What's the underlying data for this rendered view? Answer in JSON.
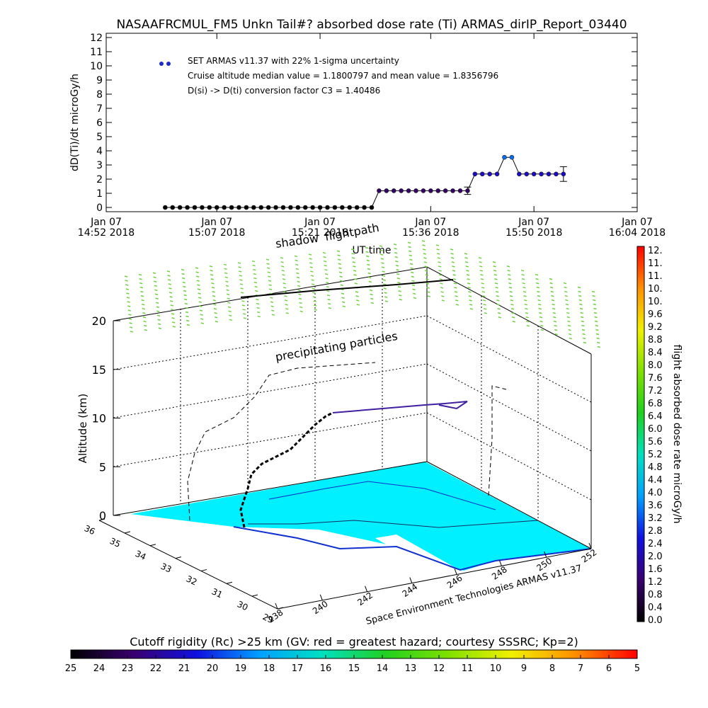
{
  "chart_data": [
    {
      "type": "line",
      "title": "NASAAFRCMUL_FM5 Unkn Tail#? absorbed dose rate (Ti) ARMAS_dirIP_Report_03440",
      "ylabel": "dD(Ti)/dt microGy/h",
      "xlabel": "UT time",
      "annotations": [
        "Cruise altitude median value = 1.1800797 and mean value = 1.8356796",
        "D(si) -> D(ti) conversion factor C3 = 1.40486"
      ],
      "xlim": [
        "14:52",
        "16:04"
      ],
      "xticks": [
        {
          "value": "14:52",
          "label": [
            "Jan 07",
            "14:52 2018"
          ]
        },
        {
          "value": "15:07",
          "label": [
            "Jan 07",
            "15:07 2018"
          ]
        },
        {
          "value": "15:21",
          "label": [
            "Jan 07",
            "15:21 2018"
          ]
        },
        {
          "value": "15:36",
          "label": [
            "Jan 07",
            "15:36 2018"
          ]
        },
        {
          "value": "15:50",
          "label": [
            "Jan 07",
            "15:50 2018"
          ]
        },
        {
          "value": "16:04",
          "label": [
            "Jan 07",
            "16:04 2018"
          ]
        }
      ],
      "ylim": [
        -0.3,
        12.3
      ],
      "yticks": [
        0,
        1,
        2,
        3,
        4,
        5,
        6,
        7,
        8,
        9,
        10,
        11,
        12
      ],
      "x": [
        "15:00",
        "15:01",
        "15:02",
        "15:03",
        "15:04",
        "15:05",
        "15:06",
        "15:07",
        "15:08",
        "15:09",
        "15:10",
        "15:11",
        "15:12",
        "15:13",
        "15:14",
        "15:15",
        "15:16",
        "15:17",
        "15:18",
        "15:19",
        "15:20",
        "15:21",
        "15:22",
        "15:23",
        "15:24",
        "15:25",
        "15:26",
        "15:27",
        "15:28",
        "15:29",
        "15:30",
        "15:31",
        "15:32",
        "15:33",
        "15:34",
        "15:35",
        "15:36",
        "15:37",
        "15:38",
        "15:39",
        "15:40",
        "15:41",
        "15:42",
        "15:43",
        "15:44",
        "15:45",
        "15:46",
        "15:47",
        "15:48",
        "15:49",
        "15:50",
        "15:51",
        "15:52",
        "15:53",
        "15:54"
      ],
      "series": [
        {
          "name": "SET ARMAS v11.37 with 22% 1-sigma uncertainty",
          "color": "#1a2ad0",
          "values": [
            0,
            0,
            0,
            0,
            0,
            0,
            0,
            0,
            0,
            0,
            0,
            0,
            0,
            0,
            0,
            0,
            0,
            0,
            0,
            0,
            0,
            0,
            0,
            0,
            0,
            0,
            0,
            0,
            0,
            1.18,
            1.18,
            1.18,
            1.18,
            1.18,
            1.18,
            1.18,
            1.18,
            1.18,
            1.18,
            1.18,
            1.18,
            1.18,
            2.36,
            2.36,
            2.36,
            2.36,
            3.54,
            3.54,
            2.36,
            2.36,
            2.36,
            2.36,
            2.36,
            2.36,
            2.36
          ],
          "errors": [
            null,
            null,
            null,
            null,
            null,
            null,
            null,
            null,
            null,
            null,
            null,
            null,
            null,
            null,
            null,
            null,
            null,
            null,
            null,
            null,
            null,
            null,
            null,
            null,
            null,
            null,
            null,
            null,
            null,
            null,
            null,
            null,
            null,
            null,
            null,
            null,
            null,
            null,
            null,
            null,
            null,
            0.26,
            null,
            null,
            null,
            null,
            null,
            null,
            null,
            null,
            null,
            null,
            null,
            null,
            0.52
          ]
        }
      ]
    },
    {
      "type": "scatter3d",
      "zlabel": "Altitude (km)",
      "zlim": [
        0,
        20
      ],
      "zticks": [
        0,
        5,
        10,
        15,
        20
      ],
      "ylim": [
        36,
        29
      ],
      "yticks": [
        36,
        35,
        34,
        33,
        32,
        31,
        30,
        29
      ],
      "xlim": [
        238,
        252
      ],
      "xticks": [
        238,
        240,
        242,
        244,
        246,
        248,
        250,
        252
      ],
      "annotations": [
        "shadow",
        "flightpath",
        "precipitating particles"
      ],
      "credit": "Space Environment Technologies ARMAS v11.37"
    },
    {
      "type": "colorbar",
      "orientation": "vertical",
      "label": "flight absorbed dose rate microGy/h",
      "lim": [
        0,
        12
      ],
      "labels": [
        "0.0",
        "0.4",
        "0.8",
        "1.2",
        "1.6",
        "2.0",
        "2.4",
        "2.8",
        "3.2",
        "3.6",
        "4.0",
        "4.4",
        "4.8",
        "5.2",
        "5.6",
        "6.0",
        "6.4",
        "6.8",
        "7.2",
        "7.6",
        "8.0",
        "8.4",
        "8.8",
        "9.2",
        "9.6",
        "10.",
        "10.",
        "11.",
        "11.",
        "12."
      ],
      "colors": [
        "#000000",
        "#3a0070",
        "#1010e0",
        "#00a0ff",
        "#00e0c0",
        "#20d020",
        "#80e000",
        "#f0f000",
        "#ff9000",
        "#ff0000"
      ]
    },
    {
      "type": "colorbar",
      "orientation": "horizontal",
      "label": "Cutoff rigidity (Rc) >25 km (GV: red = greatest hazard; courtesy SSSRC; Kp=2)",
      "lim": [
        25,
        5
      ],
      "ticks": [
        25,
        24,
        23,
        22,
        21,
        20,
        19,
        18,
        17,
        16,
        15,
        14,
        13,
        12,
        11,
        10,
        9,
        8,
        7,
        6,
        5
      ],
      "colors": [
        "#000000",
        "#3a0070",
        "#1010e0",
        "#00a0ff",
        "#00e0c0",
        "#20d020",
        "#80e000",
        "#f0f000",
        "#ff9000",
        "#ff0000"
      ]
    }
  ]
}
